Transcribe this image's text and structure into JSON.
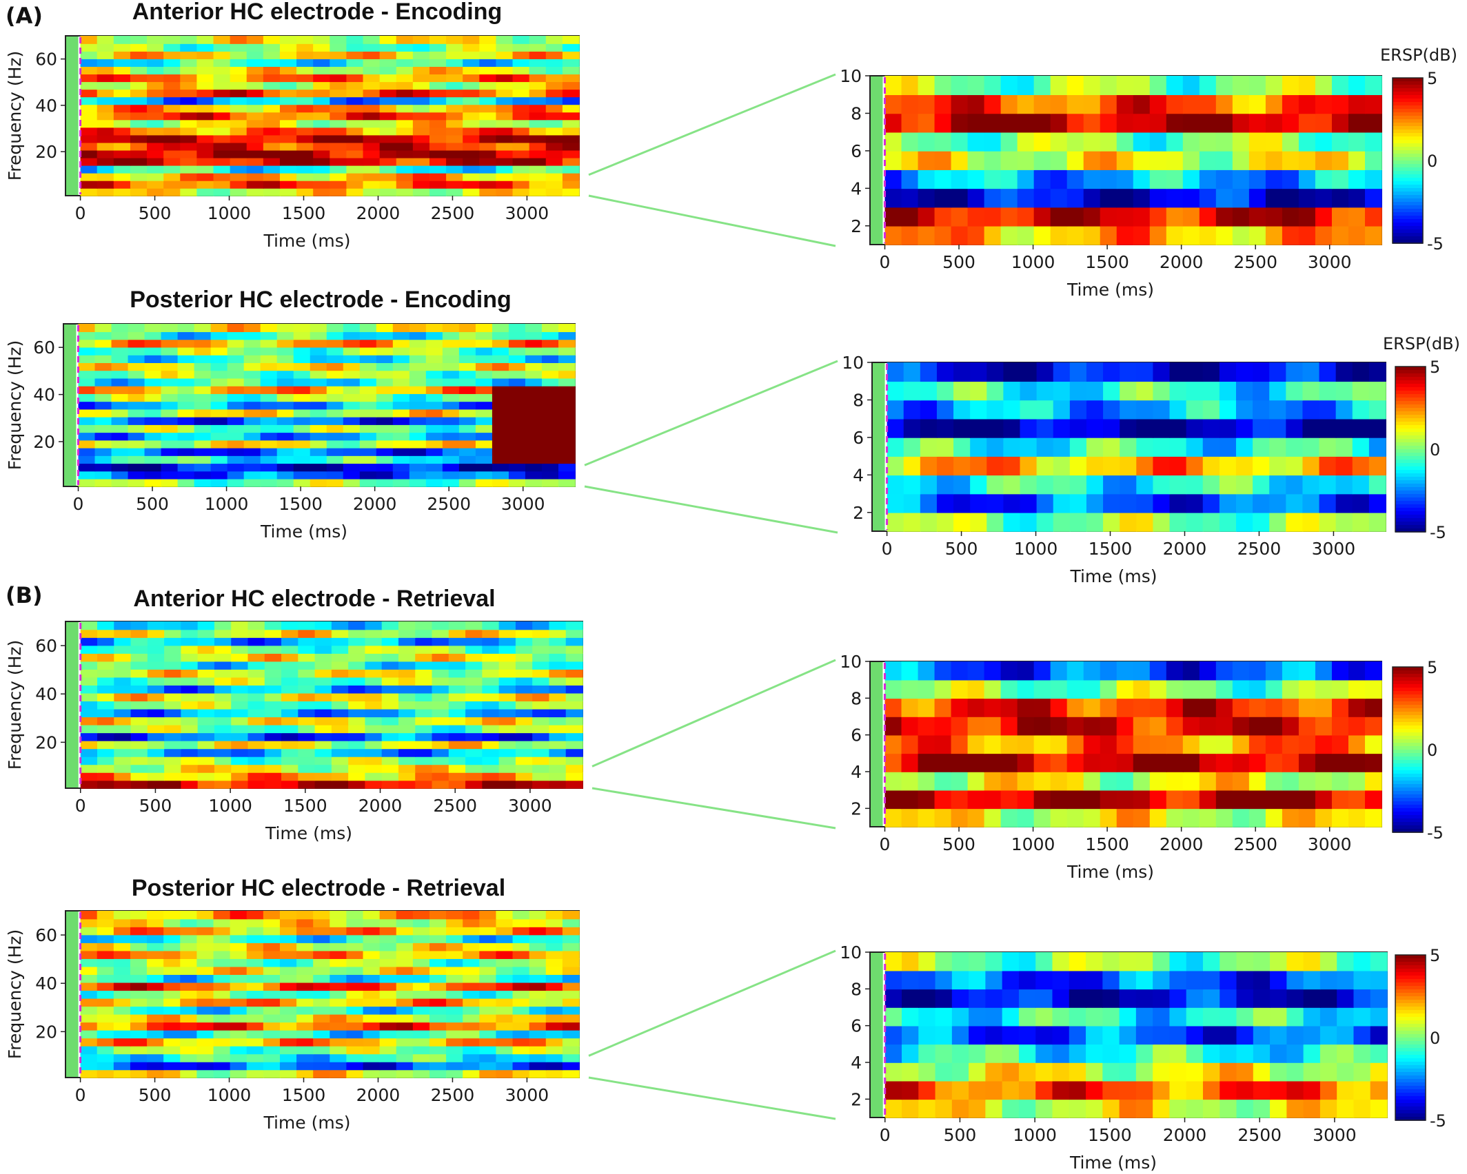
{
  "panels": [
    {
      "letter": "(A)"
    },
    {
      "letter": "(B)"
    }
  ],
  "chart_data": [
    {
      "type": "heatmap",
      "title": "Anterior HC electrode - Encoding",
      "xlabel": "Time (ms)",
      "ylabel": "Frequency (Hz)",
      "x_ticks": [
        0,
        500,
        1000,
        1500,
        2000,
        2500,
        3000
      ],
      "y_ticks": [
        20,
        40,
        60
      ],
      "xlim": [
        -100,
        3350
      ],
      "ylim": [
        1,
        70
      ],
      "stimulus_onset_ms": 0,
      "colormap": "jet",
      "zlim": [
        -5,
        5
      ],
      "pattern": [
        1,
        3,
        2,
        -1,
        4,
        4.5,
        3.5,
        4.2,
        2.5,
        1,
        3,
        2,
        -2,
        3,
        1,
        2.5,
        1,
        -1,
        1.5,
        0,
        1
      ]
    },
    {
      "type": "heatmap",
      "title": "",
      "xlabel": "Time (ms)",
      "ylabel": "",
      "x_ticks": [
        0,
        500,
        1000,
        1500,
        2000,
        2500,
        3000
      ],
      "y_ticks": [
        2,
        4,
        6,
        8,
        10
      ],
      "xlim": [
        -100,
        3350
      ],
      "ylim": [
        1,
        10
      ],
      "stimulus_onset_ms": 0,
      "colorbar_label": "ERSP(dB)",
      "colorbar_ticks": [
        5,
        0,
        -5
      ],
      "colormap": "jet",
      "zlim": [
        -5,
        5
      ],
      "pattern": [
        2,
        4,
        -4,
        -2,
        1,
        0,
        4.5,
        3,
        0
      ]
    },
    {
      "type": "heatmap",
      "title": "Posterior HC electrode - Encoding",
      "xlabel": "Time (ms)",
      "ylabel": "Frequency (Hz)",
      "x_ticks": [
        0,
        500,
        1000,
        1500,
        2000,
        2500,
        3000
      ],
      "y_ticks": [
        20,
        40,
        60
      ],
      "xlim": [
        -100,
        3350
      ],
      "ylim": [
        1,
        70
      ],
      "stimulus_onset_ms": 0,
      "colormap": "jet",
      "zlim": [
        -5,
        5
      ],
      "pattern": [
        0,
        -3,
        -4,
        -1,
        -3,
        1,
        -2,
        0,
        -3,
        1,
        -2,
        0,
        2,
        -1,
        0,
        1,
        -1,
        0,
        2,
        -1,
        1
      ],
      "hotspot": {
        "time_ms": 3000,
        "freq_range_hz": [
          10,
          45
        ]
      }
    },
    {
      "type": "heatmap",
      "title": "",
      "xlabel": "Time (ms)",
      "ylabel": "",
      "x_ticks": [
        0,
        500,
        1000,
        1500,
        2000,
        2500,
        3000
      ],
      "y_ticks": [
        2,
        4,
        6,
        8,
        10
      ],
      "xlim": [
        -100,
        3350
      ],
      "ylim": [
        1,
        10
      ],
      "stimulus_onset_ms": 0,
      "colorbar_label": "ERSP(dB)",
      "colorbar_ticks": [
        5,
        0,
        -5
      ],
      "colormap": "jet",
      "zlim": [
        -5,
        5
      ],
      "pattern": [
        0,
        -3,
        -1,
        2,
        -1,
        -4.5,
        -2,
        -1,
        -4
      ]
    },
    {
      "type": "heatmap",
      "title": "Anterior HC electrode - Retrieval",
      "xlabel": "Time (ms)",
      "ylabel": "Frequency (Hz)",
      "x_ticks": [
        0,
        500,
        1000,
        1500,
        2000,
        2500,
        3000
      ],
      "y_ticks": [
        20,
        40,
        60
      ],
      "xlim": [
        -100,
        3350
      ],
      "ylim": [
        1,
        70
      ],
      "stimulus_onset_ms": 0,
      "colormap": "jet",
      "zlim": [
        -5,
        5
      ],
      "pattern": [
        4,
        2,
        1,
        0,
        -2,
        1,
        -3,
        0,
        1,
        -2,
        0,
        1,
        -2,
        0,
        1,
        -1,
        1,
        0,
        -2,
        1,
        -1
      ]
    },
    {
      "type": "heatmap",
      "title": "",
      "xlabel": "Time (ms)",
      "ylabel": "",
      "x_ticks": [
        0,
        500,
        1000,
        1500,
        2000,
        2500,
        3000
      ],
      "y_ticks": [
        2,
        4,
        6,
        8,
        10
      ],
      "xlim": [
        -100,
        3350
      ],
      "ylim": [
        1,
        10
      ],
      "stimulus_onset_ms": 0,
      "colorbar_ticks": [
        5,
        0,
        -5
      ],
      "colormap": "jet",
      "zlim": [
        -5,
        5
      ],
      "pattern": [
        1,
        4.5,
        1,
        4.5,
        2.5,
        4,
        3.5,
        0,
        -3
      ]
    },
    {
      "type": "heatmap",
      "title": "Posterior HC electrode - Retrieval",
      "xlabel": "Time (ms)",
      "ylabel": "Frequency (Hz)",
      "x_ticks": [
        0,
        500,
        1000,
        1500,
        2000,
        2500,
        3000
      ],
      "y_ticks": [
        20,
        40,
        60
      ],
      "xlim": [
        -100,
        3350
      ],
      "ylim": [
        1,
        70
      ],
      "stimulus_onset_ms": 0,
      "colormap": "jet",
      "zlim": [
        -5,
        5
      ],
      "pattern": [
        1,
        -3,
        -1,
        0,
        2,
        -1,
        3,
        1,
        -1,
        2,
        0,
        3,
        -1,
        1,
        0,
        2,
        1,
        -1,
        2,
        1,
        2
      ]
    },
    {
      "type": "heatmap",
      "title": "",
      "xlabel": "Time (ms)",
      "ylabel": "",
      "x_ticks": [
        0,
        500,
        1000,
        1500,
        2000,
        2500,
        3000
      ],
      "y_ticks": [
        2,
        4,
        6,
        8,
        10
      ],
      "xlim": [
        -100,
        3350
      ],
      "ylim": [
        1,
        10
      ],
      "stimulus_onset_ms": 0,
      "colorbar_ticks": [
        5,
        0,
        -5
      ],
      "colormap": "jet",
      "zlim": [
        -5,
        5
      ],
      "pattern": [
        1,
        3,
        1,
        -1,
        -3,
        -1,
        -4,
        -3,
        0
      ]
    }
  ]
}
